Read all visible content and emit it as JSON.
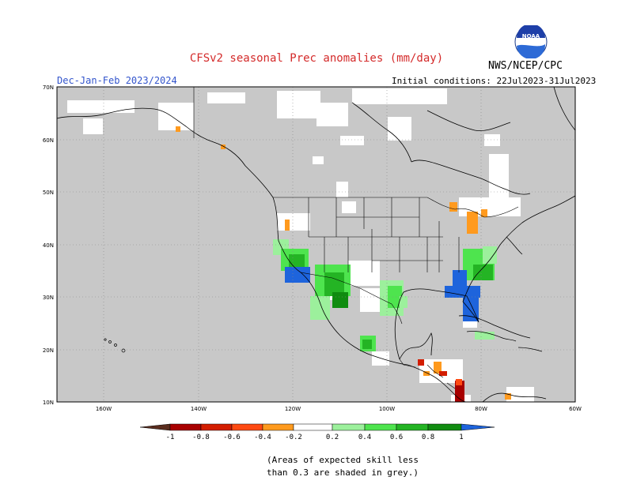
{
  "title": "CFSv2 seasonal Prec anomalies (mm/day)",
  "season": "Dec-Jan-Feb 2023/2024",
  "initial_conditions": "Initial conditions: 22Jul2023-31Jul2023",
  "agency": "NWS/NCEP/CPC",
  "logo_text": "NOAA",
  "axes": {
    "lat_ticks": [
      "70N",
      "60N",
      "50N",
      "40N",
      "30N",
      "20N",
      "10N"
    ],
    "lon_ticks": [
      "160W",
      "140W",
      "120W",
      "100W",
      "80W",
      "60W"
    ]
  },
  "colorbar": {
    "labels": [
      "-1",
      "-0.8",
      "-0.6",
      "-0.4",
      "-0.2",
      "0.2",
      "0.4",
      "0.6",
      "0.8",
      "1"
    ],
    "colors": [
      "#5a2d1e",
      "#a80000",
      "#d31d00",
      "#ff4a12",
      "#ff9a1e",
      "#ffffff",
      "#9cf09c",
      "#4ee44e",
      "#24b424",
      "#108c10",
      "#1e64dc"
    ]
  },
  "colors": {
    "low_skill_grey": "#c8c8c8",
    "no_signal": "#ffffff",
    "coast_line": "#000000"
  },
  "note": {
    "line1": "(Areas of expected skill less",
    "line2": "than 0.3 are shaded in grey.)"
  }
}
